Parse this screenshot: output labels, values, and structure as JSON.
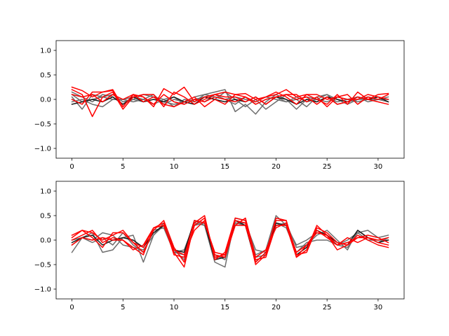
{
  "chart_data": [
    {
      "type": "line",
      "title": "",
      "xlabel": "",
      "ylabel": "",
      "xlim": [
        -1.55,
        32.55
      ],
      "ylim": [
        -1.2,
        1.2
      ],
      "xticks": [
        0,
        5,
        10,
        15,
        20,
        25,
        30
      ],
      "yticks": [
        -1.0,
        -0.5,
        0.0,
        0.5,
        1.0
      ],
      "xtick_labels": [
        "0",
        "5",
        "10",
        "15",
        "20",
        "25",
        "30"
      ],
      "ytick_labels": [
        "−1.0",
        "−0.5",
        "0.0",
        "0.5",
        "1.0"
      ],
      "grid": false,
      "x": [
        0,
        1,
        2,
        3,
        4,
        5,
        6,
        7,
        8,
        9,
        10,
        11,
        12,
        13,
        14,
        15,
        16,
        17,
        18,
        19,
        20,
        21,
        22,
        23,
        24,
        25,
        26,
        27,
        28,
        29,
        30,
        31
      ],
      "series": [
        {
          "color": "#6e6e6e",
          "values": [
            0.15,
            0.05,
            -0.05,
            0.1,
            0.05,
            -0.1,
            0.0,
            0.1,
            0.05,
            -0.05,
            -0.1,
            -0.05,
            0.05,
            0.1,
            0.15,
            0.2,
            -0.25,
            -0.1,
            -0.3,
            -0.05,
            0.1,
            0.0,
            -0.2,
            0.0,
            -0.05,
            0.05,
            -0.05,
            0.0,
            -0.05,
            0.0,
            0.05,
            0.0
          ]
        },
        {
          "color": "#6e6e6e",
          "values": [
            0.05,
            -0.2,
            0.1,
            0.05,
            0.0,
            0.0,
            -0.05,
            0.0,
            0.1,
            -0.1,
            0.0,
            -0.05,
            0.0,
            0.05,
            0.0,
            0.15,
            0.0,
            -0.15,
            0.0,
            -0.2,
            -0.05,
            0.1,
            0.0,
            -0.15,
            0.05,
            0.1,
            -0.1,
            -0.05,
            0.0,
            0.05,
            0.0,
            -0.05
          ]
        },
        {
          "color": "#6e6e6e",
          "values": [
            -0.05,
            0.0,
            -0.1,
            -0.15,
            0.0,
            0.0,
            0.05,
            0.0,
            -0.1,
            0.0,
            -0.15,
            0.0,
            -0.05,
            0.1,
            0.05,
            0.0,
            -0.1,
            0.05,
            -0.1,
            0.0,
            0.05,
            -0.05,
            0.0,
            0.05,
            0.0,
            0.1,
            0.0,
            -0.1,
            0.0,
            0.0,
            0.0,
            0.05
          ]
        },
        {
          "color": "#6e6e6e",
          "values": [
            0.1,
            -0.05,
            0.0,
            0.05,
            0.1,
            -0.05,
            0.0,
            -0.05,
            0.05,
            0.0,
            0.05,
            -0.1,
            0.0,
            -0.05,
            0.1,
            0.0,
            0.05,
            0.0,
            -0.05,
            0.05,
            0.0,
            -0.05,
            0.05,
            -0.05,
            0.0,
            -0.05,
            0.05,
            0.0,
            0.05,
            -0.05,
            0.0,
            0.0
          ]
        },
        {
          "color": "#1a1a1a",
          "values": [
            -0.1,
            -0.05,
            0.0,
            -0.05,
            0.05,
            -0.1,
            0.05,
            -0.05,
            0.0,
            -0.05,
            0.05,
            -0.05,
            -0.1,
            0.05,
            0.0,
            -0.05,
            0.0,
            -0.05,
            0.05,
            -0.1,
            0.05,
            0.0,
            -0.1,
            0.0,
            -0.05,
            0.05,
            0.0,
            -0.05,
            0.05,
            0.0,
            0.05,
            -0.05
          ]
        },
        {
          "color": "#ff0000",
          "values": [
            0.25,
            0.18,
            0.05,
            0.15,
            0.18,
            -0.15,
            0.1,
            0.05,
            -0.15,
            0.22,
            0.1,
            0.25,
            -0.05,
            0.05,
            0.1,
            0.15,
            0.1,
            0.12,
            0.0,
            0.05,
            0.1,
            0.2,
            0.05,
            0.1,
            0.0,
            -0.1,
            0.1,
            -0.1,
            0.15,
            0.0,
            0.1,
            0.12
          ]
        },
        {
          "color": "#ff0000",
          "values": [
            0.2,
            0.1,
            -0.35,
            0.05,
            0.15,
            -0.2,
            0.05,
            0.1,
            0.1,
            -0.15,
            0.15,
            0.05,
            -0.1,
            0.0,
            0.1,
            0.05,
            0.05,
            -0.05,
            0.05,
            -0.1,
            0.05,
            0.1,
            0.1,
            -0.05,
            0.05,
            -0.15,
            0.05,
            0.1,
            -0.1,
            0.05,
            0.0,
            0.1
          ]
        },
        {
          "color": "#ff0000",
          "values": [
            0.0,
            -0.1,
            0.15,
            0.15,
            0.2,
            -0.15,
            0.1,
            -0.05,
            0.05,
            -0.1,
            -0.15,
            -0.05,
            0.05,
            -0.15,
            0.0,
            -0.1,
            0.1,
            0.05,
            -0.05,
            0.05,
            0.15,
            0.05,
            -0.1,
            0.1,
            0.1,
            0.0,
            0.05,
            0.0,
            0.0,
            0.1,
            0.05,
            0.0
          ]
        },
        {
          "color": "#ff0000",
          "values": [
            0.1,
            0.05,
            0.1,
            -0.05,
            0.1,
            0.0,
            0.1,
            0.05,
            -0.1,
            0.1,
            -0.05,
            -0.1,
            0.0,
            -0.05,
            0.05,
            0.0,
            -0.05,
            0.05,
            -0.1,
            0.0,
            0.05,
            0.1,
            0.0,
            0.05,
            -0.1,
            0.05,
            -0.1,
            -0.05,
            0.05,
            0.0,
            -0.05,
            -0.1
          ]
        }
      ]
    },
    {
      "type": "line",
      "title": "",
      "xlabel": "",
      "ylabel": "",
      "xlim": [
        -1.55,
        32.55
      ],
      "ylim": [
        -1.2,
        1.2
      ],
      "xticks": [
        0,
        5,
        10,
        15,
        20,
        25,
        30
      ],
      "yticks": [
        -1.0,
        -0.5,
        0.0,
        0.5,
        1.0
      ],
      "xtick_labels": [
        "0",
        "5",
        "10",
        "15",
        "20",
        "25",
        "30"
      ],
      "ytick_labels": [
        "−1.0",
        "−0.5",
        "0.0",
        "0.5",
        "1.0"
      ],
      "grid": false,
      "x": [
        0,
        1,
        2,
        3,
        4,
        5,
        6,
        7,
        8,
        9,
        10,
        11,
        12,
        13,
        14,
        15,
        16,
        17,
        18,
        19,
        20,
        21,
        22,
        23,
        24,
        25,
        26,
        27,
        28,
        29,
        30,
        31
      ],
      "series": [
        {
          "color": "#6e6e6e",
          "values": [
            -0.25,
            0.05,
            0.15,
            -0.25,
            -0.2,
            0.05,
            0.1,
            -0.45,
            0.1,
            0.3,
            -0.25,
            -0.3,
            0.4,
            0.3,
            -0.45,
            -0.55,
            0.45,
            0.4,
            -0.3,
            -0.2,
            0.5,
            0.3,
            -0.1,
            0.0,
            0.15,
            0.1,
            -0.1,
            -0.15,
            0.15,
            0.2,
            0.05,
            0.1
          ]
        },
        {
          "color": "#6e6e6e",
          "values": [
            -0.1,
            0.05,
            -0.05,
            0.05,
            -0.1,
            0.15,
            -0.1,
            -0.25,
            0.2,
            0.25,
            -0.25,
            -0.2,
            0.35,
            0.3,
            -0.3,
            -0.4,
            0.35,
            0.35,
            -0.2,
            -0.25,
            0.3,
            0.35,
            -0.15,
            -0.1,
            0.1,
            0.2,
            0.0,
            -0.2,
            0.2,
            0.05,
            -0.05,
            0.05
          ]
        },
        {
          "color": "#6e6e6e",
          "values": [
            0.0,
            0.05,
            0.0,
            0.15,
            0.1,
            -0.1,
            -0.15,
            -0.2,
            0.1,
            0.35,
            -0.2,
            -0.4,
            0.3,
            0.35,
            -0.35,
            -0.35,
            0.35,
            0.3,
            -0.35,
            -0.3,
            0.35,
            0.25,
            -0.25,
            -0.05,
            0.0,
            0.0,
            -0.1,
            0.0,
            0.15,
            0.0,
            0.0,
            0.0
          ]
        },
        {
          "color": "#1a1a1a",
          "values": [
            -0.05,
            0.05,
            0.1,
            -0.1,
            0.0,
            0.05,
            0.0,
            -0.15,
            0.15,
            0.3,
            -0.2,
            -0.25,
            0.4,
            0.35,
            -0.4,
            -0.35,
            0.4,
            0.3,
            -0.45,
            -0.25,
            0.35,
            0.3,
            -0.3,
            -0.15,
            0.2,
            0.1,
            -0.05,
            -0.1,
            0.2,
            0.05,
            -0.05,
            0.0
          ]
        },
        {
          "color": "#ff0000",
          "values": [
            0.1,
            0.2,
            0.05,
            -0.15,
            0.15,
            0.15,
            -0.05,
            -0.15,
            0.25,
            0.3,
            -0.25,
            -0.55,
            0.35,
            0.5,
            -0.4,
            -0.25,
            0.45,
            0.4,
            -0.5,
            -0.3,
            0.45,
            0.4,
            -0.35,
            -0.2,
            0.3,
            0.1,
            -0.1,
            -0.05,
            0.05,
            0.05,
            0.0,
            0.05
          ]
        },
        {
          "color": "#ff0000",
          "values": [
            0.05,
            0.2,
            0.15,
            0.0,
            0.1,
            0.2,
            -0.05,
            -0.25,
            0.2,
            0.4,
            -0.15,
            -0.45,
            0.3,
            0.45,
            -0.35,
            -0.3,
            0.4,
            0.35,
            -0.45,
            -0.25,
            0.4,
            0.4,
            -0.3,
            -0.25,
            0.25,
            0.15,
            -0.05,
            -0.1,
            0.05,
            0.1,
            0.05,
            -0.05
          ]
        },
        {
          "color": "#ff0000",
          "values": [
            0.0,
            0.1,
            0.2,
            -0.05,
            0.05,
            0.0,
            -0.15,
            -0.3,
            0.25,
            0.35,
            -0.3,
            -0.35,
            0.4,
            0.35,
            -0.25,
            -0.3,
            0.3,
            0.45,
            -0.35,
            -0.2,
            0.25,
            0.35,
            -0.25,
            -0.1,
            0.2,
            0.05,
            -0.1,
            0.05,
            -0.05,
            0.05,
            -0.05,
            -0.1
          ]
        },
        {
          "color": "#ff0000",
          "values": [
            -0.1,
            0.05,
            0.0,
            0.05,
            0.0,
            0.0,
            -0.2,
            -0.1,
            0.25,
            0.3,
            -0.2,
            -0.3,
            0.2,
            0.4,
            -0.3,
            -0.35,
            0.3,
            0.3,
            -0.4,
            -0.35,
            0.3,
            0.3,
            -0.35,
            -0.1,
            0.15,
            0.1,
            -0.2,
            -0.1,
            0.1,
            0.0,
            -0.1,
            -0.15
          ]
        }
      ]
    }
  ]
}
